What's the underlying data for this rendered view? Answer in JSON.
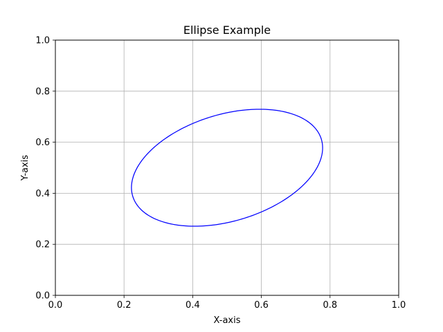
{
  "chart_data": {
    "type": "line",
    "title": "Ellipse Example",
    "xlabel": "X-axis",
    "ylabel": "Y-axis",
    "xlim": [
      0.0,
      1.0
    ],
    "ylim": [
      0.0,
      1.0
    ],
    "xticks": [
      "0.0",
      "0.2",
      "0.4",
      "0.6",
      "0.8",
      "1.0"
    ],
    "yticks": [
      "0.0",
      "0.2",
      "0.4",
      "0.6",
      "0.8",
      "1.0"
    ],
    "grid": true,
    "legend": "none",
    "series": [
      {
        "shape": "ellipse",
        "center": [
          0.5,
          0.5
        ],
        "width": 0.6,
        "height": 0.4,
        "angle_deg": 30,
        "color": "#0000ff",
        "fill": "none"
      }
    ]
  }
}
